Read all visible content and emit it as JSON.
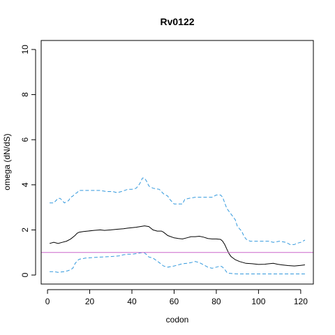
{
  "chart_data": {
    "type": "line",
    "title": "Rv0122",
    "xlabel": "codon",
    "ylabel": "omega (dN/dS)",
    "xlim": [
      -3,
      126
    ],
    "ylim": [
      -0.4,
      10.4
    ],
    "x_ticks": [
      0,
      20,
      40,
      60,
      80,
      100,
      120
    ],
    "y_ticks": [
      0,
      2,
      4,
      6,
      8,
      10
    ],
    "reference_line": {
      "y": 1,
      "color": "#cc66cc"
    },
    "colors": {
      "estimate": "#000000",
      "interval": "#3399dd"
    },
    "series": [
      {
        "role": "upper",
        "style": "dashed",
        "x": [
          1,
          3,
          5,
          6,
          7,
          8,
          9,
          10,
          11,
          12,
          13,
          14,
          15,
          20,
          25,
          28,
          31,
          33,
          35,
          38,
          40,
          42,
          43,
          44,
          45,
          46,
          47,
          48,
          50,
          53,
          55,
          57,
          58,
          60,
          62,
          64,
          65,
          67,
          70,
          73,
          78,
          79,
          80,
          82,
          83,
          84,
          85,
          87,
          89,
          90,
          92,
          93,
          94,
          96,
          98,
          100,
          102,
          105,
          107,
          110,
          113,
          115,
          117,
          118,
          120,
          122
        ],
        "y": [
          3.2,
          3.2,
          3.4,
          3.4,
          3.3,
          3.2,
          3.25,
          3.3,
          3.45,
          3.5,
          3.6,
          3.65,
          3.75,
          3.75,
          3.75,
          3.7,
          3.7,
          3.65,
          3.7,
          3.8,
          3.8,
          3.85,
          3.95,
          4.1,
          4.3,
          4.3,
          4.15,
          3.95,
          3.85,
          3.8,
          3.6,
          3.5,
          3.35,
          3.15,
          3.15,
          3.15,
          3.35,
          3.4,
          3.45,
          3.45,
          3.45,
          3.5,
          3.55,
          3.55,
          3.45,
          3.2,
          2.95,
          2.7,
          2.45,
          2.15,
          1.95,
          1.75,
          1.6,
          1.5,
          1.5,
          1.5,
          1.5,
          1.5,
          1.45,
          1.5,
          1.45,
          1.35,
          1.35,
          1.4,
          1.45,
          1.55
        ]
      },
      {
        "role": "estimate",
        "style": "solid",
        "x": [
          1,
          3,
          5,
          7,
          9,
          11,
          13,
          14,
          15,
          17,
          19,
          22,
          25,
          27,
          30,
          33,
          36,
          38,
          40,
          42,
          44,
          46,
          48,
          50,
          52,
          54,
          55,
          57,
          60,
          62,
          64,
          66,
          68,
          70,
          72,
          74,
          76,
          78,
          80,
          82,
          83,
          84,
          85,
          86,
          87,
          89,
          91,
          94,
          97,
          100,
          103,
          105,
          107,
          109,
          111,
          114,
          117,
          120,
          122
        ],
        "y": [
          1.4,
          1.45,
          1.4,
          1.45,
          1.5,
          1.6,
          1.75,
          1.85,
          1.9,
          1.93,
          1.95,
          1.98,
          2.0,
          1.98,
          2.0,
          2.03,
          2.05,
          2.08,
          2.1,
          2.12,
          2.15,
          2.18,
          2.15,
          2.0,
          1.95,
          1.95,
          1.9,
          1.75,
          1.65,
          1.62,
          1.6,
          1.65,
          1.7,
          1.7,
          1.72,
          1.68,
          1.62,
          1.6,
          1.6,
          1.58,
          1.5,
          1.35,
          1.15,
          0.95,
          0.82,
          0.68,
          0.6,
          0.52,
          0.5,
          0.47,
          0.48,
          0.5,
          0.52,
          0.48,
          0.45,
          0.42,
          0.4,
          0.43,
          0.45
        ]
      },
      {
        "role": "lower",
        "style": "dashed",
        "x": [
          1,
          3,
          5,
          8,
          10,
          12,
          13,
          14,
          15,
          18,
          22,
          26,
          30,
          34,
          36,
          38,
          40,
          42,
          44,
          45,
          46,
          47,
          48,
          50,
          53,
          55,
          57,
          60,
          62,
          64,
          66,
          68,
          70,
          72,
          74,
          76,
          78,
          80,
          82,
          83,
          84,
          85,
          86,
          88,
          90,
          95,
          100,
          105,
          110,
          115,
          120,
          122
        ],
        "y": [
          0.15,
          0.15,
          0.12,
          0.15,
          0.2,
          0.3,
          0.5,
          0.62,
          0.7,
          0.75,
          0.78,
          0.8,
          0.82,
          0.85,
          0.9,
          0.92,
          0.92,
          0.95,
          0.98,
          1.0,
          0.98,
          0.9,
          0.8,
          0.75,
          0.55,
          0.4,
          0.35,
          0.4,
          0.45,
          0.5,
          0.52,
          0.55,
          0.6,
          0.55,
          0.45,
          0.35,
          0.3,
          0.35,
          0.4,
          0.35,
          0.25,
          0.12,
          0.08,
          0.06,
          0.05,
          0.05,
          0.05,
          0.05,
          0.05,
          0.05,
          0.05,
          0.05
        ]
      }
    ]
  }
}
